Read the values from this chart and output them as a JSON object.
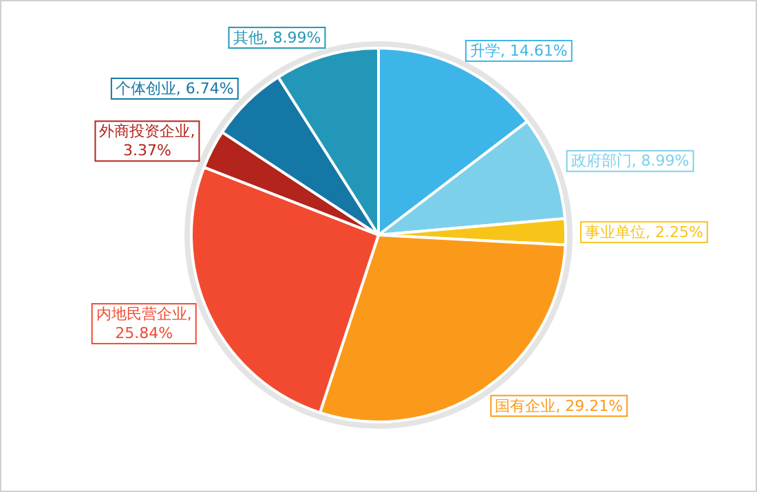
{
  "chart_data": {
    "type": "pie",
    "categories": [
      "升学",
      "政府部门",
      "事业单位",
      "国有企业",
      "内地民营企业",
      "外商投资企业",
      "个体创业",
      "其他"
    ],
    "values": [
      14.61,
      8.99,
      2.25,
      29.21,
      25.84,
      3.37,
      6.74,
      8.99
    ],
    "value_labels": [
      ", 14.61%",
      ", 8.99%",
      ", 2.25%",
      ", 29.21%",
      ", 25.84%",
      ", 3.37%",
      ", 6.74%",
      ", 8.99%"
    ],
    "colors": [
      "#3db5e8",
      "#7dd0ea",
      "#f7c51a",
      "#fb9a1a",
      "#f24a30",
      "#b2241c",
      "#1577a6",
      "#2397b8"
    ]
  }
}
